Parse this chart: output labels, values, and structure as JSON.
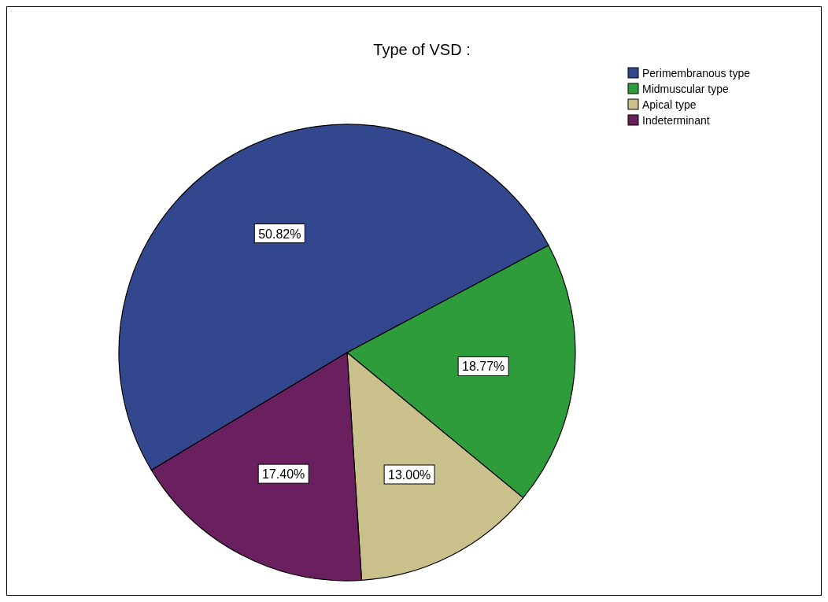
{
  "chart_data": {
    "type": "pie",
    "title": "Type of VSD :",
    "categories": [
      "Perimembranous type",
      "Midmuscular type",
      "Apical type",
      "Indeterminant"
    ],
    "values": [
      50.82,
      18.77,
      13.0,
      17.4
    ],
    "colors": [
      "#33478f",
      "#2f9c3c",
      "#c9c08c",
      "#6a1f5f"
    ],
    "value_labels": [
      "50.82%",
      "18.77%",
      "13.00%",
      "17.40%"
    ],
    "legend": "top right"
  }
}
